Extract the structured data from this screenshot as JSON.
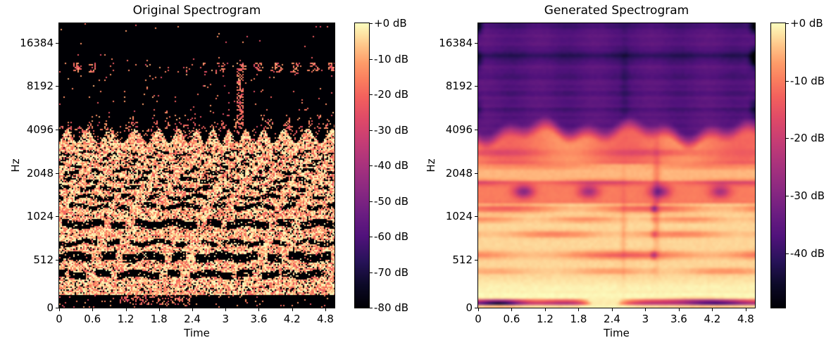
{
  "figure": {
    "background": "#ffffff",
    "text_color": "#000000"
  },
  "colormap": {
    "name": "magma",
    "stops": [
      [
        0,
        "#000004"
      ],
      [
        0.08,
        "#0c0927"
      ],
      [
        0.16,
        "#261257"
      ],
      [
        0.25,
        "#50127b"
      ],
      [
        0.33,
        "#6b1d81"
      ],
      [
        0.42,
        "#8c2981"
      ],
      [
        0.5,
        "#a8327d"
      ],
      [
        0.58,
        "#c43c75"
      ],
      [
        0.66,
        "#de4968"
      ],
      [
        0.74,
        "#f2605d"
      ],
      [
        0.8,
        "#fa7d5e"
      ],
      [
        0.86,
        "#fe9c69"
      ],
      [
        0.92,
        "#fec488"
      ],
      [
        0.96,
        "#fde2a3"
      ],
      [
        1,
        "#fcfdbf"
      ]
    ]
  },
  "panels": [
    {
      "title": "Original Spectrogram",
      "xlabel": "Time",
      "ylabel": "Hz",
      "x_ticks": [
        "0",
        "0.6",
        "1.2",
        "1.8",
        "2.4",
        "3",
        "3.6",
        "4.2",
        "4.8"
      ],
      "y_ticks": [
        "16384",
        "8192",
        "4096",
        "2048",
        "1024",
        "512",
        "0"
      ],
      "colorbar_ticks": [
        "+0 dB",
        "-10 dB",
        "-20 dB",
        "-30 dB",
        "-40 dB",
        "-50 dB",
        "-60 dB",
        "-70 dB",
        "-80 dB"
      ]
    },
    {
      "title": "Generated Spectrogram",
      "xlabel": "Time",
      "ylabel": "Hz",
      "x_ticks": [
        "0",
        "0.6",
        "1.2",
        "1.8",
        "2.4",
        "3",
        "3.6",
        "4.2",
        "4.8"
      ],
      "y_ticks": [
        "16384",
        "8192",
        "4096",
        "2048",
        "1024",
        "512",
        "0"
      ],
      "colorbar_ticks": [
        "+0 dB",
        "-10 dB",
        "-20 dB",
        "-30 dB",
        "-40 dB"
      ]
    }
  ],
  "chart_data": [
    {
      "type": "heatmap",
      "title": "Original Spectrogram",
      "xlabel": "Time",
      "ylabel": "Hz",
      "x_range": [
        0,
        5.0
      ],
      "x_tick_values": [
        0,
        0.6,
        1.2,
        1.8,
        2.4,
        3,
        3.6,
        4.2,
        4.8
      ],
      "y_axis": "log-frequency",
      "y_tick_values": [
        16384,
        8192,
        4096,
        2048,
        1024,
        512,
        0
      ],
      "colorbar_range_db": [
        -80,
        0
      ],
      "colormap": "magma",
      "style": "speckled",
      "description": "Black (-80 dB) above ~4 kHz with sparse hot speckles; a horizontal speckle band near 11 kHz; a transient speckle column near t=3.2 s spanning ~4-12 kHz; dense bright (near 0 dB) texture below 4 kHz interrupted by dark wavy harmonic gap lines; black band at the very bottom with speckles near t=1.6-2.4 s",
      "render": {
        "speckle_band": {
          "y": [
            0.138,
            0.175
          ],
          "dense_x_clusters": [
            [
              0.045,
              0.135
            ],
            [
              0.545,
              1.0
            ]
          ]
        },
        "transient_column": {
          "x": 0.657,
          "y": [
            0.145,
            0.392
          ]
        },
        "dense_top_edge": 0.372,
        "gap_lines": [
          [
            0.458,
            0.01,
            0.3,
            -0.2
          ],
          [
            0.478,
            0.01,
            0.3,
            -0.1
          ],
          [
            0.499,
            0.01,
            0.3,
            0.0
          ],
          [
            0.521,
            0.013,
            0.25,
            -0.35
          ],
          [
            0.551,
            0.014,
            0.25,
            -0.4
          ],
          [
            0.581,
            0.015,
            0.22,
            -0.45
          ],
          [
            0.612,
            0.015,
            0.2,
            -0.5
          ],
          [
            0.644,
            0.016,
            0.16,
            -0.55
          ],
          [
            0.706,
            0.027,
            0.1,
            -0.75
          ],
          [
            0.772,
            0.016,
            0.12,
            -0.6
          ],
          [
            0.822,
            0.029,
            0.1,
            -0.8
          ],
          [
            0.883,
            0.024,
            0.1,
            -0.75
          ],
          [
            0.93,
            0.008,
            0.55,
            0.35
          ]
        ],
        "bottom_black_band": {
          "y": 0.9575,
          "speckle_x": [
            0.22,
            0.48
          ]
        }
      }
    },
    {
      "type": "heatmap",
      "title": "Generated Spectrogram",
      "xlabel": "Time",
      "ylabel": "Hz",
      "x_range": [
        0,
        5.0
      ],
      "x_tick_values": [
        0,
        0.6,
        1.2,
        1.8,
        2.4,
        3,
        3.6,
        4.2,
        4.8
      ],
      "y_axis": "log-frequency",
      "y_tick_values": [
        16384,
        8192,
        4096,
        2048,
        1024,
        512,
        0
      ],
      "colorbar_range_db": [
        -49,
        0
      ],
      "colormap": "magma",
      "style": "smooth",
      "description": "Smooth blurred field: violet (~-35 dB) above ~4 kHz with thin darker stripes and dark corner blobs; wavy violet-to-orange transition at ~4 kHz; bright cream (~0 dB) below 1 kHz with broken orange harmonic bands; row of dark purple blobs near 1.5 kHz at t=0.8/2.1/3.4/4.5; red dotted vertical streak near t=3.2; dark purple band hugging the bottom edge with a gap near t=2.2",
      "render": {
        "boundary": 0.382,
        "stripe_band_y": 0.115,
        "blob_row": {
          "y": 0.592,
          "x": [
            0.165,
            0.4,
            0.655,
            0.875
          ]
        },
        "orange_bands": [
          [
            0.455,
            0.012,
            0.12,
            11,
            1
          ],
          [
            0.502,
            0.01,
            0.1,
            9,
            0
          ],
          [
            0.56,
            0.01,
            0.16,
            13,
            2
          ],
          [
            0.652,
            0.013,
            0.22,
            12,
            0.5
          ],
          [
            0.69,
            0.01,
            0.12,
            17,
            1.3
          ],
          [
            0.742,
            0.011,
            0.15,
            14,
            4
          ],
          [
            0.815,
            0.013,
            0.22,
            10,
            2.6
          ],
          [
            0.872,
            0.01,
            0.1,
            15,
            0.8
          ]
        ],
        "red_streak_x": 0.635,
        "bottom_dark_band": {
          "y": 0.982,
          "gap_x": 0.45,
          "strong_x": 0.78
        }
      }
    }
  ]
}
